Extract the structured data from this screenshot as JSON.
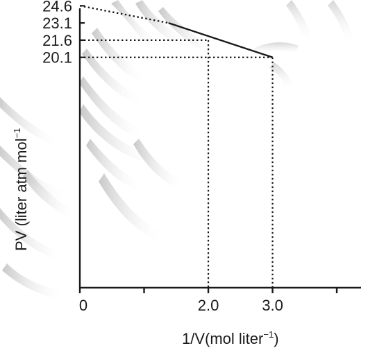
{
  "chart_data": {
    "type": "line",
    "title": "",
    "xlabel": {
      "main": "1/V(mol liter",
      "sup": "−1",
      "close": ")"
    },
    "ylabel": {
      "main": "PV (liter atm mol",
      "sup": "−1"
    },
    "xlim": [
      0,
      4.5
    ],
    "ylim": [
      0,
      25.6
    ],
    "x_ticks": [
      0,
      1,
      2,
      3,
      4
    ],
    "x_tick_labels": [
      {
        "value": 0,
        "label": "0"
      },
      {
        "value": 2,
        "label": "2.0"
      },
      {
        "value": 3,
        "label": "3.0"
      }
    ],
    "y_tick_labels": [
      {
        "value": 24.6,
        "label": "24.6"
      },
      {
        "value": 23.1,
        "label": "23.1"
      },
      {
        "value": 21.6,
        "label": "21.6"
      },
      {
        "value": 20.1,
        "label": "20.1"
      }
    ],
    "series": [
      {
        "style": "solid",
        "x": [
          1.38,
          3.0
        ],
        "y": [
          23.1,
          20.1
        ]
      },
      {
        "style": "dotted",
        "x": [
          0,
          1.38
        ],
        "y": [
          24.6,
          23.1
        ]
      }
    ],
    "guides": [
      {
        "x": 2.0,
        "y": 21.6
      },
      {
        "x": 3.0,
        "y": 20.1
      }
    ],
    "grid": false
  }
}
